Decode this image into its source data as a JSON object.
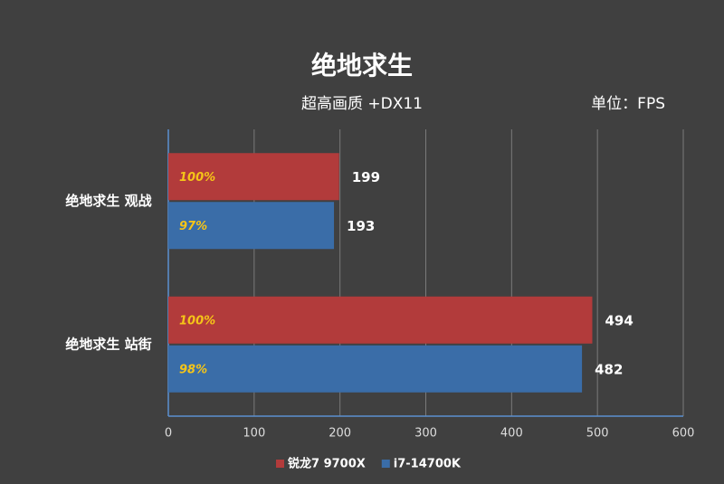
{
  "chart_data": {
    "type": "hbar",
    "title": "绝地求生",
    "subtitle": "超高画质 +DX11",
    "unit_label": "单位：FPS",
    "categories": [
      "绝地求生 观战",
      "绝地求生 站街"
    ],
    "series": [
      {
        "name": "锐龙7 9700X",
        "color": "#b23b3b",
        "values": [
          199,
          494
        ],
        "relative_labels": [
          "100%",
          "100%"
        ]
      },
      {
        "name": "i7-14700K",
        "color": "#3a6da8",
        "values": [
          193,
          482
        ],
        "relative_labels": [
          "97%",
          "98%"
        ]
      }
    ],
    "xlim": [
      0,
      600
    ],
    "xticks": [
      0,
      100,
      200,
      300,
      400,
      500,
      600
    ],
    "grid": true,
    "legend": "bottom"
  }
}
